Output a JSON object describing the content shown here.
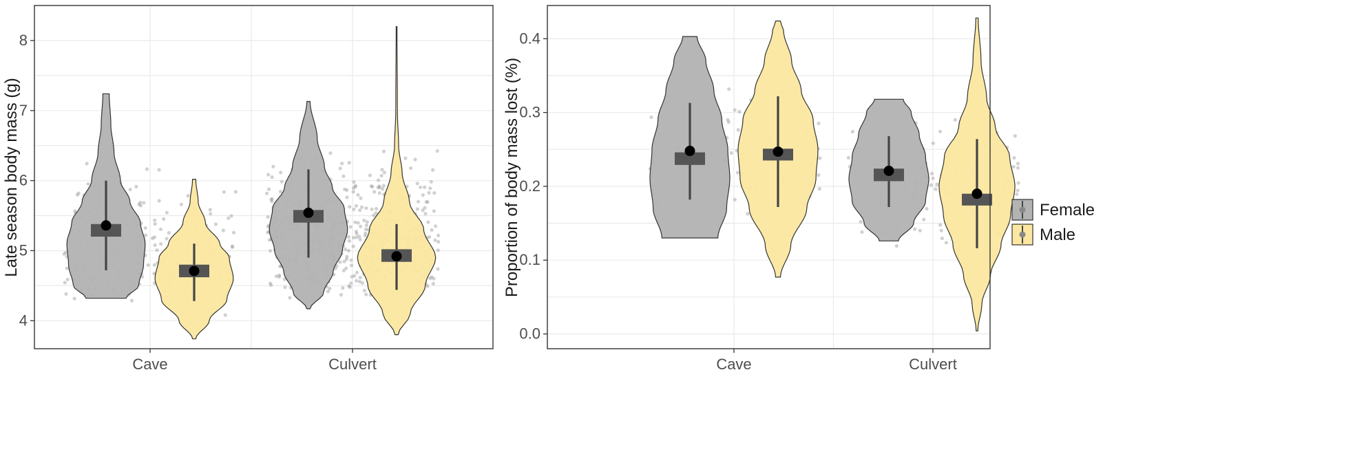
{
  "colors": {
    "female": "#b3b3b3",
    "male": "#fbe7a1",
    "box": "#555555",
    "whisker": "#444444",
    "mean": "#000000",
    "jitter": "#9a9a9a"
  },
  "legend": {
    "position": "right",
    "items": [
      {
        "label": "Female",
        "color": "#b3b3b3"
      },
      {
        "label": "Male",
        "color": "#fbe7a1"
      }
    ]
  },
  "chart_data": [
    {
      "type": "violin",
      "title": "",
      "xlabel": "",
      "ylabel": "Late season body mass (g)",
      "categories": [
        "Cave",
        "Culvert"
      ],
      "ylim": [
        3.6,
        8.5
      ],
      "yticks": [
        4,
        5,
        6,
        7,
        8
      ],
      "ytick_labels": [
        "4",
        "5",
        "6",
        "7",
        "8"
      ],
      "grid": true,
      "series": [
        {
          "name": "Female",
          "groups": [
            {
              "category": "Cave",
              "min": 4.32,
              "max": 7.24,
              "mean": 5.36,
              "box": [
                5.2,
                5.38
              ],
              "whisker": [
                4.72,
                6.0
              ],
              "profile": [
                [
                  4.32,
                  0.5
                ],
                [
                  4.5,
                  0.82
                ],
                [
                  4.8,
                  0.94
                ],
                [
                  5.1,
                  0.98
                ],
                [
                  5.4,
                  0.86
                ],
                [
                  5.7,
                  0.6
                ],
                [
                  6.0,
                  0.36
                ],
                [
                  6.4,
                  0.2
                ],
                [
                  6.8,
                  0.12
                ],
                [
                  7.24,
                  0.08
                ]
              ]
            },
            {
              "category": "Culvert",
              "min": 4.17,
              "max": 7.13,
              "mean": 5.54,
              "box": [
                5.4,
                5.58
              ],
              "whisker": [
                4.9,
                6.16
              ],
              "profile": [
                [
                  4.17,
                  0.04
                ],
                [
                  4.4,
                  0.38
                ],
                [
                  4.7,
                  0.62
                ],
                [
                  5.0,
                  0.85
                ],
                [
                  5.3,
                  0.98
                ],
                [
                  5.6,
                  0.9
                ],
                [
                  5.9,
                  0.6
                ],
                [
                  6.2,
                  0.4
                ],
                [
                  6.6,
                  0.22
                ],
                [
                  7.13,
                  0.04
                ]
              ]
            }
          ]
        },
        {
          "name": "Male",
          "groups": [
            {
              "category": "Cave",
              "min": 3.74,
              "max": 6.02,
              "mean": 4.71,
              "box": [
                4.62,
                4.8
              ],
              "whisker": [
                4.28,
                5.1
              ],
              "profile": [
                [
                  3.74,
                  0.04
                ],
                [
                  4.0,
                  0.38
                ],
                [
                  4.3,
                  0.82
                ],
                [
                  4.6,
                  0.98
                ],
                [
                  4.9,
                  0.88
                ],
                [
                  5.1,
                  0.64
                ],
                [
                  5.4,
                  0.28
                ],
                [
                  5.7,
                  0.1
                ],
                [
                  6.02,
                  0.04
                ]
              ]
            },
            {
              "category": "Culvert",
              "min": 3.8,
              "max": 8.2,
              "mean": 4.92,
              "box": [
                4.84,
                5.02
              ],
              "whisker": [
                4.44,
                5.38
              ],
              "profile": [
                [
                  3.8,
                  0.04
                ],
                [
                  4.1,
                  0.34
                ],
                [
                  4.5,
                  0.72
                ],
                [
                  4.9,
                  0.98
                ],
                [
                  5.3,
                  0.68
                ],
                [
                  5.7,
                  0.32
                ],
                [
                  6.1,
                  0.14
                ],
                [
                  6.5,
                  0.05
                ],
                [
                  7.0,
                  0.02
                ],
                [
                  8.2,
                  0.01
                ]
              ]
            }
          ]
        }
      ]
    },
    {
      "type": "violin",
      "title": "",
      "xlabel": "",
      "ylabel": "Proportion of body mass lost (%)",
      "categories": [
        "Cave",
        "Culvert"
      ],
      "ylim": [
        -0.02,
        0.445
      ],
      "yticks": [
        0.0,
        0.1,
        0.2,
        0.3,
        0.4
      ],
      "ytick_labels": [
        "0.0",
        "0.1",
        "0.2",
        "0.3",
        "0.4"
      ],
      "grid": true,
      "series": [
        {
          "name": "Female",
          "groups": [
            {
              "category": "Cave",
              "min": 0.13,
              "max": 0.403,
              "mean": 0.248,
              "box": [
                0.229,
                0.246
              ],
              "whisker": [
                0.182,
                0.313
              ],
              "profile": [
                [
                  0.13,
                  0.7
                ],
                [
                  0.17,
                  0.92
                ],
                [
                  0.21,
                  1.0
                ],
                [
                  0.25,
                  0.95
                ],
                [
                  0.29,
                  0.8
                ],
                [
                  0.33,
                  0.6
                ],
                [
                  0.37,
                  0.4
                ],
                [
                  0.403,
                  0.18
                ]
              ]
            },
            {
              "category": "Culvert",
              "min": 0.126,
              "max": 0.318,
              "mean": 0.221,
              "box": [
                0.207,
                0.224
              ],
              "whisker": [
                0.172,
                0.268
              ],
              "profile": [
                [
                  0.126,
                  0.24
                ],
                [
                  0.15,
                  0.62
                ],
                [
                  0.18,
                  0.92
                ],
                [
                  0.21,
                  1.0
                ],
                [
                  0.24,
                  0.92
                ],
                [
                  0.27,
                  0.76
                ],
                [
                  0.3,
                  0.56
                ],
                [
                  0.318,
                  0.36
                ]
              ]
            }
          ]
        },
        {
          "name": "Male",
          "groups": [
            {
              "category": "Cave",
              "min": 0.077,
              "max": 0.424,
              "mean": 0.247,
              "box": [
                0.235,
                0.251
              ],
              "whisker": [
                0.172,
                0.322
              ],
              "profile": [
                [
                  0.077,
                  0.06
                ],
                [
                  0.12,
                  0.32
                ],
                [
                  0.17,
                  0.72
                ],
                [
                  0.21,
                  0.95
                ],
                [
                  0.25,
                  1.0
                ],
                [
                  0.29,
                  0.88
                ],
                [
                  0.33,
                  0.58
                ],
                [
                  0.37,
                  0.34
                ],
                [
                  0.41,
                  0.14
                ],
                [
                  0.424,
                  0.06
                ]
              ]
            },
            {
              "category": "Culvert",
              "min": 0.004,
              "max": 0.428,
              "mean": 0.19,
              "box": [
                0.174,
                0.19
              ],
              "whisker": [
                0.116,
                0.264
              ],
              "profile": [
                [
                  0.004,
                  0.02
                ],
                [
                  0.04,
                  0.12
                ],
                [
                  0.08,
                  0.34
                ],
                [
                  0.12,
                  0.6
                ],
                [
                  0.16,
                  0.84
                ],
                [
                  0.2,
                  0.95
                ],
                [
                  0.24,
                  0.82
                ],
                [
                  0.28,
                  0.46
                ],
                [
                  0.32,
                  0.24
                ],
                [
                  0.37,
                  0.1
                ],
                [
                  0.428,
                  0.03
                ]
              ]
            }
          ]
        }
      ]
    }
  ]
}
